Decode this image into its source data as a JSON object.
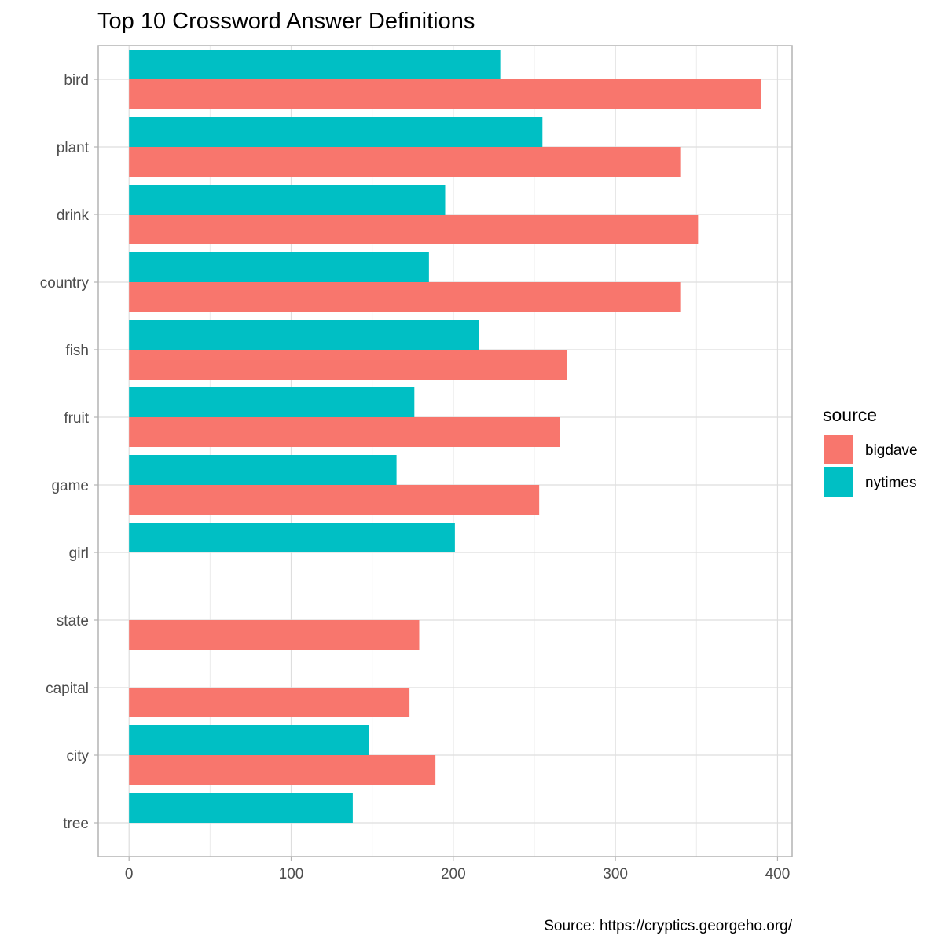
{
  "chart_data": {
    "type": "bar",
    "orientation": "horizontal",
    "title": "Top 10 Crossword Answer Definitions",
    "caption": "Source: https://cryptics.georgeho.org/",
    "categories": [
      "bird",
      "plant",
      "drink",
      "country",
      "fish",
      "fruit",
      "game",
      "girl",
      "state",
      "capital",
      "city",
      "tree"
    ],
    "series": [
      {
        "name": "bigdave",
        "color": "#F8766D",
        "values": [
          390,
          340,
          351,
          340,
          270,
          266,
          253,
          null,
          179,
          173,
          189,
          null
        ]
      },
      {
        "name": "nytimes",
        "color": "#00BFC4",
        "values": [
          229,
          255,
          195,
          185,
          216,
          176,
          165,
          201,
          null,
          null,
          148,
          138
        ]
      }
    ],
    "xlim": [
      -19,
      409
    ],
    "xticks": [
      0,
      100,
      200,
      300,
      400
    ],
    "xlabel": "",
    "ylabel": "",
    "legend": {
      "title": "source",
      "placement": "right"
    },
    "grid": true
  }
}
